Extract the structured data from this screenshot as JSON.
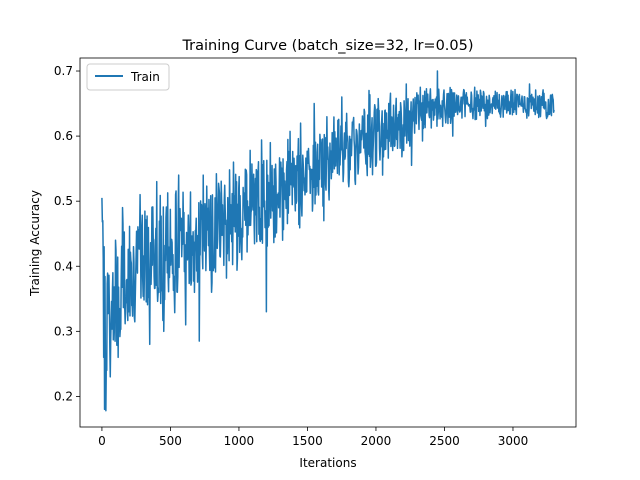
{
  "chart_data": {
    "type": "line",
    "title": "Training Curve (batch_size=32, lr=0.05)",
    "xlabel": "Iterations",
    "ylabel": "Training Accuracy",
    "xlim": [
      -160,
      3460
    ],
    "ylim": [
      0.153,
      0.72
    ],
    "xticks": [
      0,
      500,
      1000,
      1500,
      2000,
      2500,
      3000
    ],
    "yticks": [
      0.2,
      0.3,
      0.4,
      0.5,
      0.6,
      0.7
    ],
    "grid": false,
    "legend_position": "top-left",
    "series": [
      {
        "name": "Train",
        "color": "#1f77b4",
        "x_range": [
          0,
          3300
        ],
        "num_points": 1032,
        "trend": [
          [
            0,
            0.38
          ],
          [
            20,
            0.3
          ],
          [
            50,
            0.32
          ],
          [
            100,
            0.35
          ],
          [
            200,
            0.38
          ],
          [
            300,
            0.4
          ],
          [
            500,
            0.42
          ],
          [
            700,
            0.44
          ],
          [
            900,
            0.47
          ],
          [
            1100,
            0.5
          ],
          [
            1300,
            0.52
          ],
          [
            1500,
            0.54
          ],
          [
            1700,
            0.57
          ],
          [
            1900,
            0.59
          ],
          [
            2100,
            0.61
          ],
          [
            2300,
            0.63
          ],
          [
            2500,
            0.645
          ],
          [
            2700,
            0.65
          ],
          [
            3000,
            0.65
          ],
          [
            3300,
            0.65
          ]
        ],
        "noise_amplitude": [
          [
            0,
            0.09
          ],
          [
            500,
            0.075
          ],
          [
            1000,
            0.07
          ],
          [
            1500,
            0.06
          ],
          [
            2000,
            0.05
          ],
          [
            2300,
            0.035
          ],
          [
            2700,
            0.02
          ],
          [
            3300,
            0.018
          ]
        ],
        "highlights": [
          [
            0,
            0.505
          ],
          [
            5,
            0.47
          ],
          [
            15,
            0.43
          ],
          [
            20,
            0.18
          ],
          [
            28,
            0.178
          ],
          [
            35,
            0.24
          ],
          [
            48,
            0.34
          ],
          [
            60,
            0.23
          ],
          [
            80,
            0.39
          ],
          [
            100,
            0.44
          ],
          [
            120,
            0.26
          ],
          [
            150,
            0.49
          ],
          [
            200,
            0.33
          ],
          [
            280,
            0.51
          ],
          [
            350,
            0.28
          ],
          [
            400,
            0.53
          ],
          [
            450,
            0.3
          ],
          [
            560,
            0.54
          ],
          [
            610,
            0.31
          ],
          [
            710,
            0.285
          ],
          [
            740,
            0.54
          ],
          [
            800,
            0.36
          ],
          [
            960,
            0.56
          ],
          [
            1020,
            0.41
          ],
          [
            1200,
            0.33
          ],
          [
            1230,
            0.59
          ],
          [
            1320,
            0.44
          ],
          [
            1450,
            0.62
          ],
          [
            1550,
            0.65
          ],
          [
            1620,
            0.47
          ],
          [
            1750,
            0.66
          ],
          [
            1800,
            0.53
          ],
          [
            1950,
            0.67
          ],
          [
            2050,
            0.54
          ],
          [
            2220,
            0.68
          ],
          [
            2260,
            0.555
          ],
          [
            2450,
            0.7
          ],
          [
            2560,
            0.6
          ],
          [
            2720,
            0.675
          ],
          [
            2800,
            0.615
          ],
          [
            3120,
            0.68
          ],
          [
            3200,
            0.63
          ],
          [
            3300,
            0.64
          ]
        ]
      }
    ]
  }
}
